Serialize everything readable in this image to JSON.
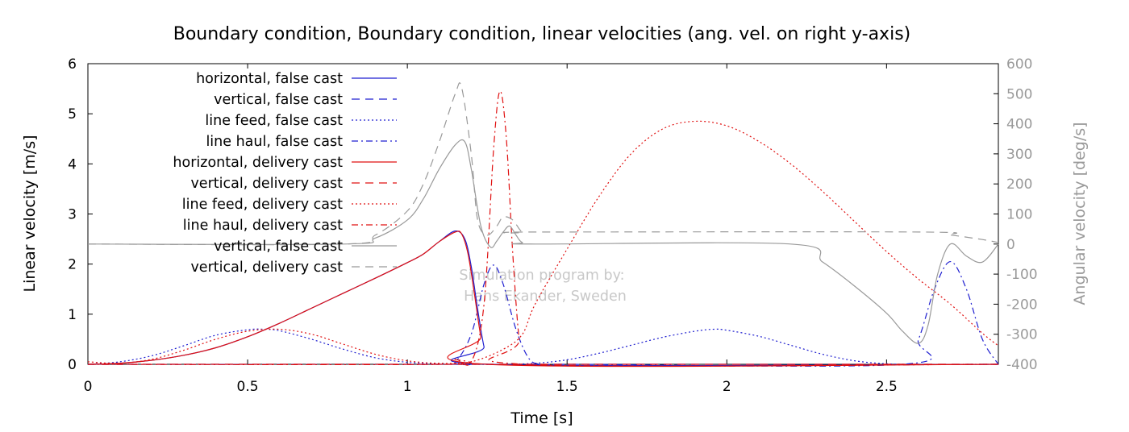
{
  "chart_data": {
    "type": "line",
    "title": "Boundary condition, Boundary condition, linear velocities (ang. vel. on right y-axis)",
    "xlabel": "Time [s]",
    "ylabel": "Linear velocity [m/s]",
    "y2label": "Angular velocity [deg/s]",
    "xlim": [
      0,
      2.85
    ],
    "ylim": [
      0,
      6
    ],
    "y2lim": [
      -400,
      600
    ],
    "xticks": [
      0,
      0.5,
      1,
      1.5,
      2,
      2.5
    ],
    "xtick_labels": [
      "0",
      "0.5",
      "1",
      "1.5",
      "2",
      "2.5"
    ],
    "yticks": [
      0,
      1,
      2,
      3,
      4,
      5,
      6
    ],
    "ytick_labels": [
      "0",
      "1",
      "2",
      "3",
      "4",
      "5",
      "6"
    ],
    "y2ticks": [
      -400,
      -300,
      -200,
      -100,
      0,
      100,
      200,
      300,
      400,
      500,
      600
    ],
    "y2tick_labels": [
      "-400",
      "-300",
      "-200",
      "-100",
      "0",
      "100",
      "200",
      "300",
      "400",
      "500",
      "600"
    ],
    "grid": false,
    "legend_position": "top-left",
    "watermark": [
      "Simulation program by:",
      "Hans Ekander, Sweden"
    ],
    "series": [
      {
        "name": "horizontal, false cast",
        "axis": "left",
        "color": "#1f1fd0",
        "dash": "solid",
        "x": [
          0,
          0.1,
          0.2,
          0.3,
          0.4,
          0.5,
          0.6,
          0.7,
          0.8,
          0.9,
          1.0,
          1.05,
          1.1,
          1.15,
          1.18,
          1.2,
          1.22,
          1.24,
          1.26,
          2.85
        ],
        "y": [
          0,
          0.02,
          0.08,
          0.18,
          0.33,
          0.55,
          0.82,
          1.12,
          1.42,
          1.72,
          2.03,
          2.2,
          2.45,
          2.66,
          2.5,
          1.95,
          1.1,
          0.35,
          0,
          0
        ]
      },
      {
        "name": "vertical, false cast",
        "axis": "left",
        "color": "#1f1fd0",
        "dash": "10,7",
        "x": [
          0,
          2.85
        ],
        "y": [
          0,
          0
        ]
      },
      {
        "name": "line feed, false cast",
        "axis": "left",
        "color": "#1f1fd0",
        "dash": "2,3",
        "x": [
          0,
          0.1,
          0.2,
          0.3,
          0.4,
          0.5,
          0.55,
          0.6,
          0.7,
          0.8,
          0.9,
          1.0,
          1.1,
          1.2,
          1.3,
          1.4,
          1.5,
          1.6,
          1.7,
          1.8,
          1.9,
          1.96,
          2.0,
          2.1,
          2.2,
          2.3,
          2.4,
          2.5,
          2.6,
          2.85
        ],
        "y": [
          0,
          0.05,
          0.17,
          0.37,
          0.58,
          0.69,
          0.7,
          0.67,
          0.5,
          0.3,
          0.13,
          0.04,
          0.01,
          0,
          0,
          0.02,
          0.09,
          0.22,
          0.38,
          0.54,
          0.66,
          0.7,
          0.68,
          0.56,
          0.38,
          0.2,
          0.07,
          0.01,
          0,
          0
        ]
      },
      {
        "name": "line haul, false cast",
        "axis": "left",
        "color": "#1f1fd0",
        "dash": "8,4,2,4",
        "x": [
          0,
          1.1,
          1.15,
          1.2,
          1.24,
          1.27,
          1.3,
          1.34,
          1.38,
          1.42,
          1.5,
          2.55,
          2.6,
          2.65,
          2.7,
          2.75,
          2.8,
          2.85
        ],
        "y": [
          0,
          0,
          0.05,
          0.6,
          1.6,
          1.98,
          1.6,
          0.7,
          0.12,
          0,
          0,
          0,
          0.5,
          1.5,
          2.05,
          1.5,
          0.5,
          0
        ]
      },
      {
        "name": "horizontal, delivery cast",
        "axis": "left",
        "color": "#e01010",
        "dash": "solid",
        "x": [
          0,
          0.1,
          0.2,
          0.3,
          0.4,
          0.5,
          0.6,
          0.7,
          0.8,
          0.9,
          1.0,
          1.05,
          1.1,
          1.15,
          1.17,
          1.19,
          1.21,
          1.23,
          1.25,
          2.85
        ],
        "y": [
          0,
          0.02,
          0.08,
          0.18,
          0.33,
          0.55,
          0.82,
          1.12,
          1.42,
          1.72,
          2.03,
          2.2,
          2.45,
          2.64,
          2.6,
          2.2,
          1.4,
          0.55,
          0,
          0
        ]
      },
      {
        "name": "vertical, delivery cast",
        "axis": "left",
        "color": "#e01010",
        "dash": "10,7",
        "x": [
          0,
          2.85
        ],
        "y": [
          0,
          0
        ]
      },
      {
        "name": "line feed, delivery cast",
        "axis": "left",
        "color": "#e01010",
        "dash": "2,3",
        "x": [
          0,
          0.1,
          0.2,
          0.3,
          0.4,
          0.5,
          0.6,
          0.7,
          0.8,
          0.9,
          1.0,
          1.1,
          1.2,
          1.3,
          1.36,
          1.4,
          1.5,
          1.6,
          1.7,
          1.8,
          1.9,
          2.0,
          2.1,
          2.2,
          2.3,
          2.4,
          2.5,
          2.6,
          2.7,
          2.8,
          2.85
        ],
        "y": [
          0.05,
          0.02,
          0.1,
          0.28,
          0.5,
          0.66,
          0.7,
          0.6,
          0.4,
          0.2,
          0.07,
          0.02,
          0.05,
          0.3,
          0.6,
          1.2,
          2.3,
          3.35,
          4.2,
          4.7,
          4.85,
          4.76,
          4.45,
          4.0,
          3.45,
          2.85,
          2.25,
          1.7,
          1.2,
          0.62,
          0.37
        ]
      },
      {
        "name": "line haul, delivery cast",
        "axis": "left",
        "color": "#e01010",
        "dash": "8,4,2,4",
        "x": [
          0,
          1.1,
          1.15,
          1.2,
          1.24,
          1.27,
          1.29,
          1.31,
          1.33,
          1.35,
          1.37,
          2.85
        ],
        "y": [
          0,
          0,
          0.1,
          0.05,
          1.2,
          4.3,
          5.45,
          4.5,
          2.2,
          0.5,
          0,
          0
        ]
      },
      {
        "name": "vertical, false cast",
        "axis": "right",
        "color": "#999999",
        "dash": "solid",
        "x": [
          0,
          0.8,
          0.9,
          1.0,
          1.05,
          1.1,
          1.15,
          1.18,
          1.2,
          1.23,
          1.26,
          1.28,
          1.3,
          1.32,
          1.34,
          1.36,
          1.4,
          2.2,
          2.3,
          2.4,
          2.5,
          2.55,
          2.6,
          2.63,
          2.66,
          2.7,
          2.75,
          2.8,
          2.85
        ],
        "y": [
          0,
          0,
          20,
          80,
          150,
          250,
          330,
          340,
          250,
          60,
          -10,
          10,
          40,
          60,
          30,
          5,
          0,
          0,
          -60,
          -140,
          -230,
          -290,
          -330,
          -270,
          -100,
          0,
          -40,
          -60,
          0
        ]
      },
      {
        "name": "vertical, delivery cast",
        "axis": "right",
        "color": "#999999",
        "dash": "10,7",
        "x": [
          0,
          0.8,
          0.9,
          1.0,
          1.05,
          1.1,
          1.15,
          1.17,
          1.2,
          1.22,
          1.25,
          1.28,
          1.3,
          1.33,
          1.36,
          1.4,
          2.6,
          2.7,
          2.8,
          2.85
        ],
        "y": [
          0,
          0,
          30,
          110,
          200,
          340,
          500,
          520,
          300,
          80,
          30,
          60,
          90,
          80,
          40,
          40,
          40,
          30,
          15,
          5
        ]
      }
    ]
  }
}
